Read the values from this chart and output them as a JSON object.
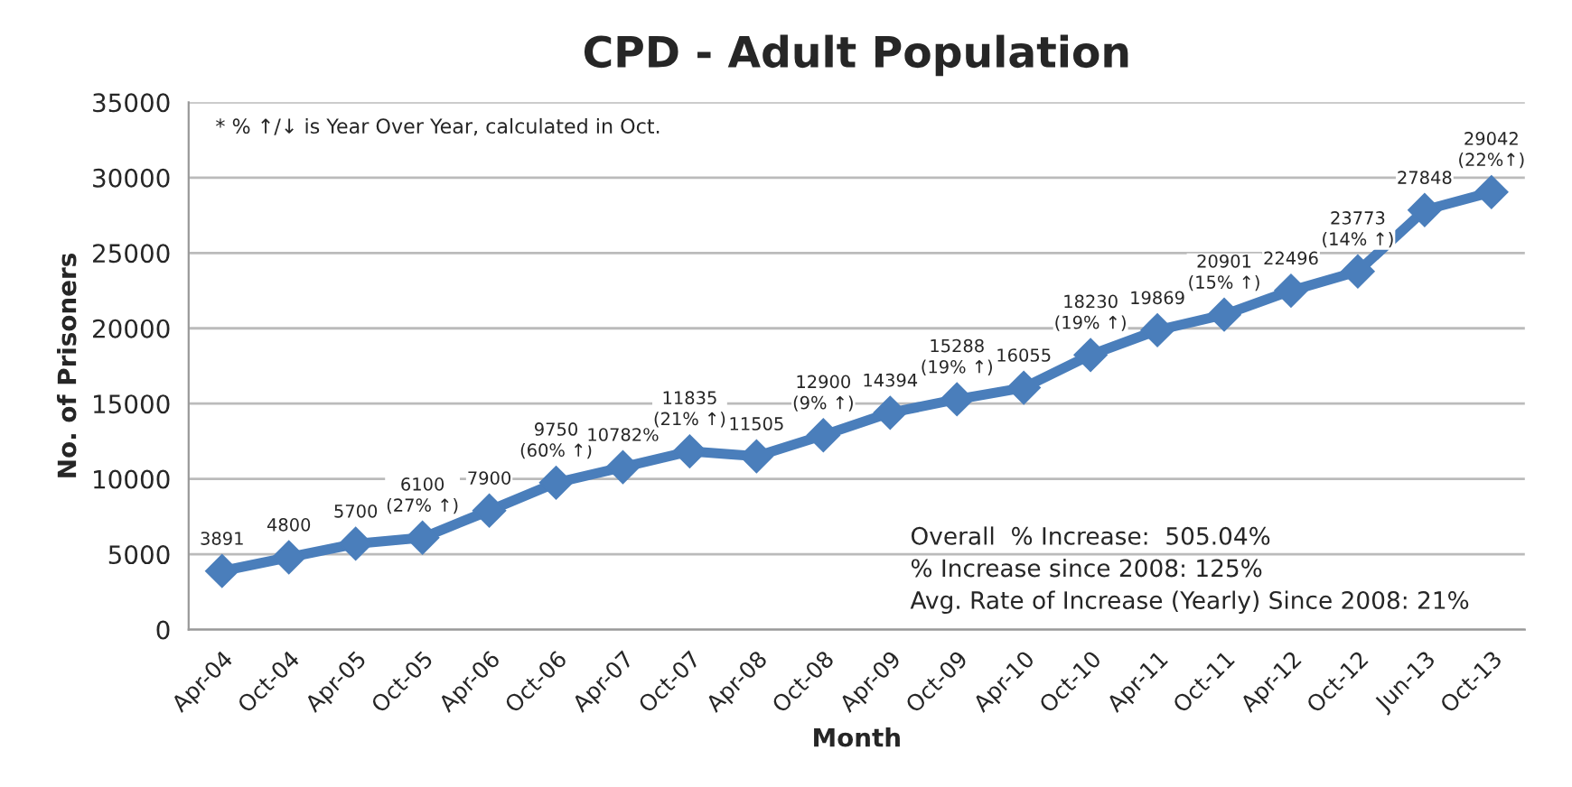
{
  "chart_data": {
    "type": "line",
    "title": "CPD - Adult Population",
    "xlabel": "Month",
    "ylabel": "No. of Prisoners",
    "categories": [
      "Apr-04",
      "Oct-04",
      "Apr-05",
      "Oct-05",
      "Apr-06",
      "Oct-06",
      "Apr-07",
      "Oct-07",
      "Apr-08",
      "Oct-08",
      "Apr-09",
      "Oct-09",
      "Apr-10",
      "Oct-10",
      "Apr-11",
      "Oct-11",
      "Apr-12",
      "Oct-12",
      "Jun-13",
      "Oct-13"
    ],
    "series": [
      {
        "color": "#4a7ebb",
        "values": [
          3891,
          4800,
          5700,
          6100,
          7900,
          9750,
          10782,
          11835,
          11505,
          12900,
          14394,
          15288,
          16055,
          18230,
          19869,
          20901,
          22496,
          23773,
          27848,
          29042
        ],
        "value_labels": [
          "3891",
          "4800",
          "5700",
          "6100\n(27% ↑)",
          "7900",
          "9750\n(60% ↑)",
          "10782%",
          "11835\n(21% ↑)",
          "11505",
          "12900\n(9% ↑)",
          "14394",
          "15288\n(19% ↑)",
          "16055",
          "18230\n(19% ↑)",
          "19869",
          "20901\n(15% ↑)",
          "22496",
          "23773\n(14% ↑)",
          "27848",
          "29042\n(22%↑)"
        ]
      }
    ],
    "ylim": [
      0,
      35000
    ],
    "yticks": [
      0,
      5000,
      10000,
      15000,
      20000,
      25000,
      30000,
      35000
    ],
    "grid": "y",
    "marker": "diamond",
    "line_style": "solid",
    "annotations": [
      "* % ↑/↓ is Year Over Year, calculated in Oct.",
      "Overall  % Increase:  505.04%\n% Increase since 2008: 125%\nAvg. Rate of Increase (Yearly) Since 2008: 21%"
    ]
  }
}
